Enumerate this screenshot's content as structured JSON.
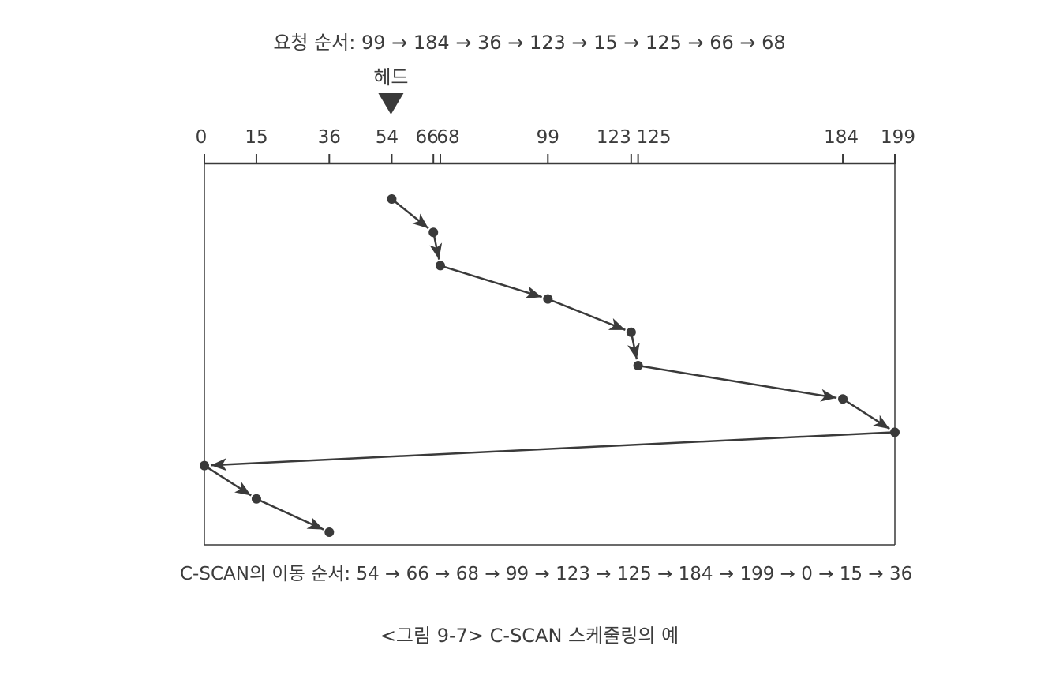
{
  "request_order_text": "요청 순서: 99 → 184 → 36 → 123 → 15 → 125 → 66 → 68",
  "head_label": "헤드",
  "cscan_order_text": "C-SCAN의 이동 순서: 54 → 66 → 68 → 99 → 123 → 125 → 184 → 199 → 0 → 15 → 36",
  "caption": "<그림 9-7> C-SCAN 스케줄링의 예",
  "head_position": 54,
  "axis": {
    "min": 0,
    "max": 199,
    "ticks": [
      {
        "value": 0,
        "label": "0"
      },
      {
        "value": 15,
        "label": "15"
      },
      {
        "value": 36,
        "label": "36"
      },
      {
        "value": 54,
        "label": "54"
      },
      {
        "value": 66,
        "label": "66"
      },
      {
        "value": 68,
        "label": "68"
      },
      {
        "value": 99,
        "label": "99"
      },
      {
        "value": 123,
        "label": "123"
      },
      {
        "value": 125,
        "label": "125"
      },
      {
        "value": 184,
        "label": "184"
      },
      {
        "value": 199,
        "label": "199"
      }
    ]
  },
  "movement_sequence": [
    54,
    66,
    68,
    99,
    123,
    125,
    184,
    199,
    0,
    15,
    36
  ],
  "colors": {
    "line": "#3a3a3a",
    "text": "#3c3c3c"
  }
}
